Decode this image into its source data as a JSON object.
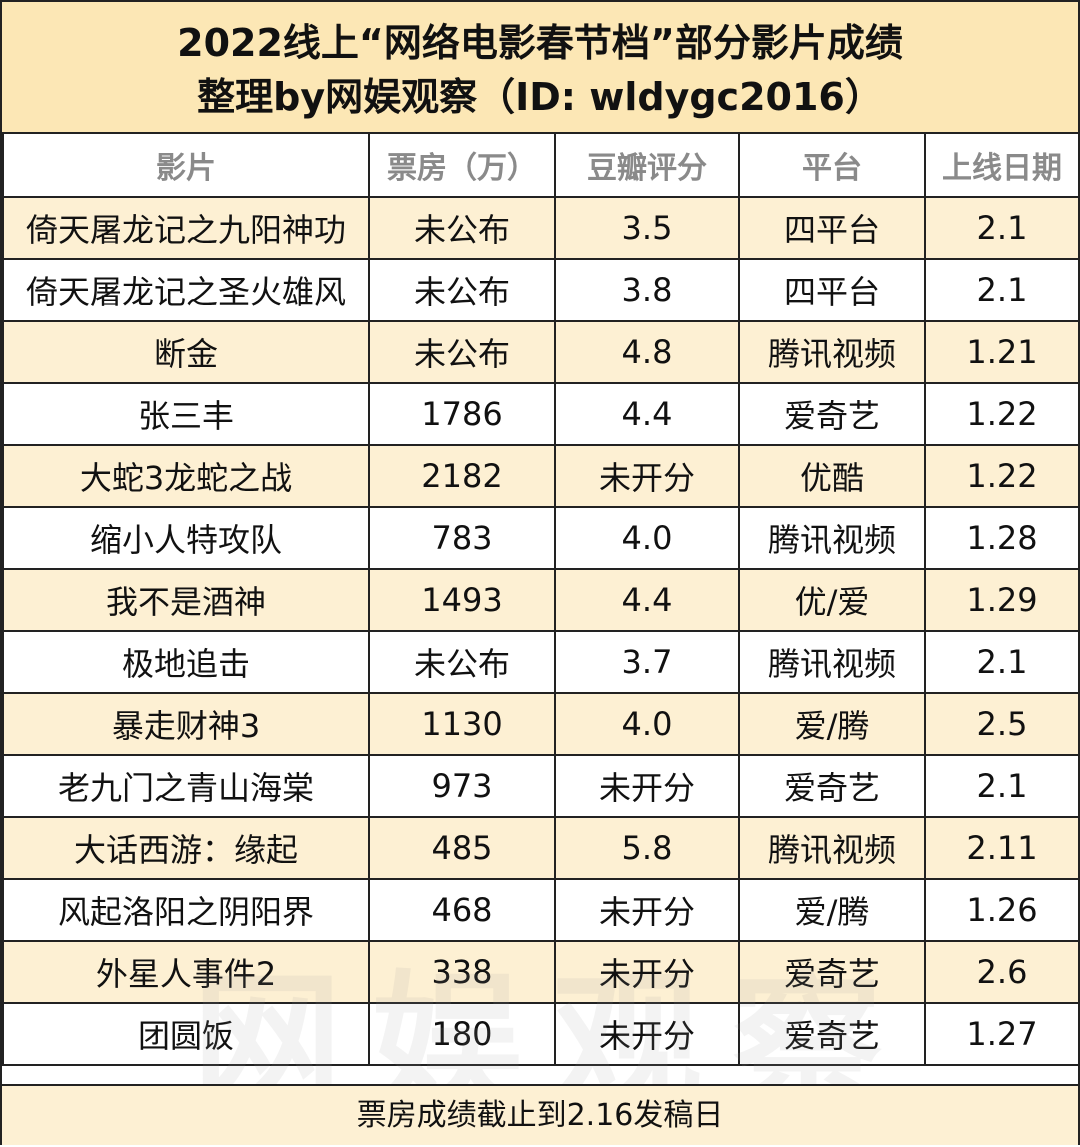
{
  "title": {
    "line1": "2022线上“网络电影春节档”部分影片成绩",
    "line2": "整理by网娱观察（ID: wldygc2016）"
  },
  "table": {
    "headers": [
      "影片",
      "票房（万）",
      "豆瓣评分",
      "平台",
      "上线日期"
    ],
    "rows": [
      [
        "倚天屠龙记之九阳神功",
        "未公布",
        "3.5",
        "四平台",
        "2.1"
      ],
      [
        "倚天屠龙记之圣火雄风",
        "未公布",
        "3.8",
        "四平台",
        "2.1"
      ],
      [
        "断金",
        "未公布",
        "4.8",
        "腾讯视频",
        "1.21"
      ],
      [
        "张三丰",
        "1786",
        "4.4",
        "爱奇艺",
        "1.22"
      ],
      [
        "大蛇3龙蛇之战",
        "2182",
        "未开分",
        "优酷",
        "1.22"
      ],
      [
        "缩小人特攻队",
        "783",
        "4.0",
        "腾讯视频",
        "1.28"
      ],
      [
        "我不是酒神",
        "1493",
        "4.4",
        "优/爱",
        "1.29"
      ],
      [
        "极地追击",
        "未公布",
        "3.7",
        "腾讯视频",
        "2.1"
      ],
      [
        "暴走财神3",
        "1130",
        "4.0",
        "爱/腾",
        "2.5"
      ],
      [
        "老九门之青山海棠",
        "973",
        "未开分",
        "爱奇艺",
        "2.1"
      ],
      [
        "大话西游：缘起",
        "485",
        "5.8",
        "腾讯视频",
        "2.11"
      ],
      [
        "风起洛阳之阴阳界",
        "468",
        "未开分",
        "爱/腾",
        "1.26"
      ],
      [
        "外星人事件2",
        "338",
        "未开分",
        "爱奇艺",
        "2.6"
      ],
      [
        "团圆饭",
        "180",
        "未开分",
        "爱奇艺",
        "1.27"
      ]
    ]
  },
  "footer": {
    "note": "票房成绩截止到2.16发稿日"
  },
  "watermark": {
    "text": "网娱观察"
  },
  "colors": {
    "title_bg": "#fce7b5",
    "row_highlight": "#fdf0d3",
    "header_text": "#8a8a8a",
    "border": "#222222"
  }
}
